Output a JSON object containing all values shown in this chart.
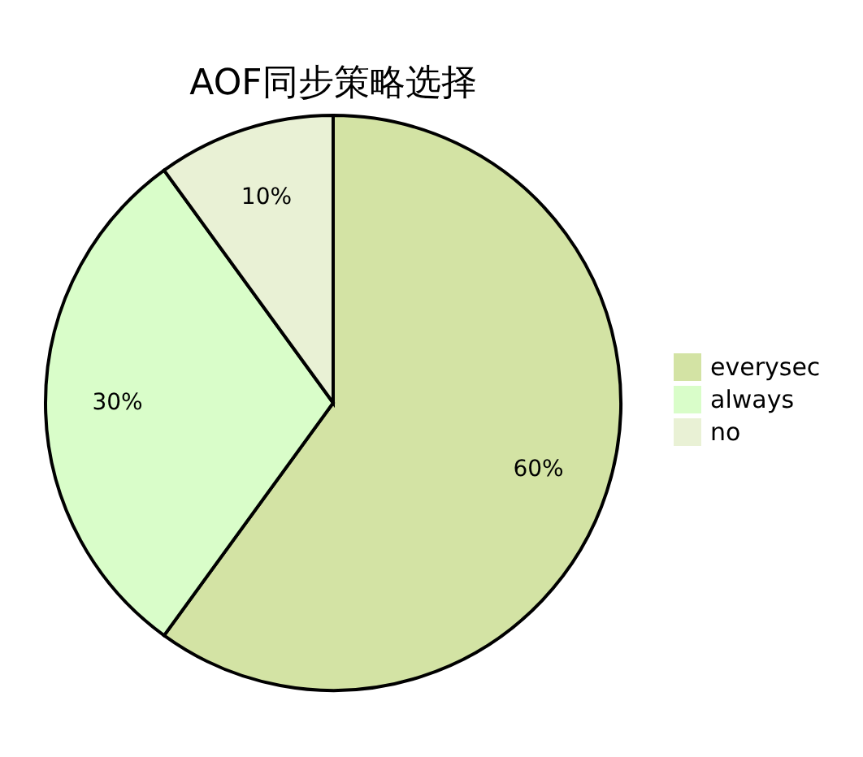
{
  "chart_data": {
    "type": "pie",
    "title": "AOF同步策略选择",
    "categories": [
      "everysec",
      "always",
      "no"
    ],
    "values": [
      60,
      30,
      10
    ],
    "colors": [
      "#d3e3a4",
      "#d9fdc9",
      "#e9f1d5"
    ],
    "value_labels": [
      "60%",
      "30%",
      "10%"
    ],
    "legend": "right"
  }
}
